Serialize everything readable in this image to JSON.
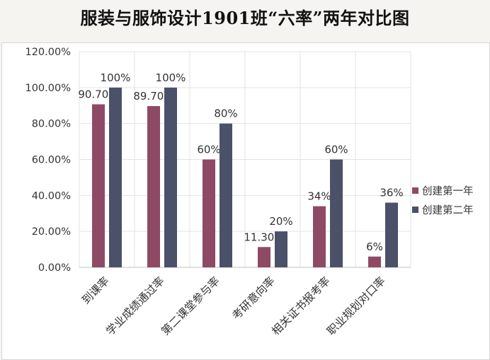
{
  "title": "服装与服饰设计1901班“六率”两年对比图",
  "chart_data": {
    "type": "bar",
    "title": "服装与服饰设计1901班“六率”两年对比图",
    "categories": [
      "到课率",
      "学业成绩通过率",
      "第二课堂参与率",
      "考研意向率",
      "相关证书报考率",
      "职业规划对口率"
    ],
    "series": [
      {
        "name": "创建第一年",
        "values": [
          90.7,
          89.7,
          60,
          11.3,
          34,
          6
        ],
        "labels": [
          "90.70%",
          "89.70%",
          "60%",
          "11.30%",
          "34%",
          "6%"
        ],
        "color": "#8e4a64"
      },
      {
        "name": "创建第二年",
        "values": [
          100,
          100,
          80,
          20,
          60,
          36
        ],
        "labels": [
          "100%",
          "100%",
          "80%",
          "20%",
          "60%",
          "36%"
        ],
        "color": "#4b5169"
      }
    ],
    "ylim": [
      0,
      120
    ],
    "yticks": [
      "0.00%",
      "20.00%",
      "40.00%",
      "60.00%",
      "80.00%",
      "100.00%",
      "120.00%"
    ],
    "ytick_values": [
      0,
      20,
      40,
      60,
      80,
      100,
      120
    ],
    "grid": true,
    "legend": "right"
  }
}
